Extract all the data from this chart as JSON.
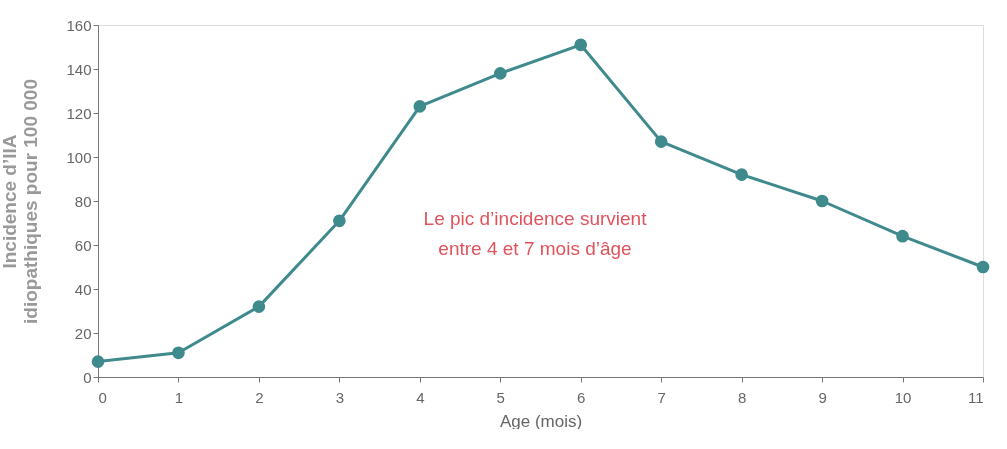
{
  "chart_data": {
    "type": "line",
    "xlabel": "Age (mois)",
    "ylabel": "Incidence d’IIA\nidiopathiques pour 100 000",
    "x": [
      0,
      1,
      2,
      3,
      4,
      5,
      6,
      7,
      8,
      9,
      10,
      11
    ],
    "series": [
      {
        "color": "#3f8a8c",
        "values": [
          7,
          11,
          32,
          71,
          123,
          138,
          151,
          107,
          92,
          80,
          64,
          50
        ]
      }
    ],
    "xlim": [
      0,
      11
    ],
    "xticks": [
      0,
      1,
      2,
      3,
      4,
      5,
      6,
      7,
      8,
      9,
      10,
      11
    ],
    "ylim": [
      0,
      160
    ],
    "yticks": [
      0,
      20,
      40,
      60,
      80,
      100,
      120,
      140,
      160
    ],
    "grid": false,
    "legend": false,
    "marker": "circle",
    "line_style": "solid",
    "annotations": [
      "Le pic d’incidence survient\nentre 4 et 7 mois d’âge"
    ]
  }
}
